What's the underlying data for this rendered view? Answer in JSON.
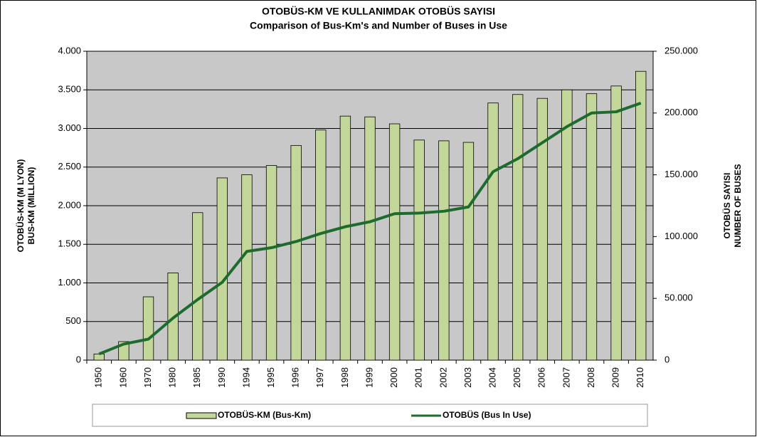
{
  "chart_data": {
    "type": "bar",
    "title": "OTOBÜS-KM VE KULLANIMDAK  OTOBÜS SAYISI",
    "subtitle": "Comparison of Bus-Km's and Number of Buses in Use",
    "ylabel": [
      "OTOBÜS-KM (M LYON)",
      "BUS-KM (MILLION)"
    ],
    "y2label": [
      "OTOBÜS SAYISI",
      "NUMBER OF BUSES"
    ],
    "categories": [
      "1950",
      "1960",
      "1970",
      "1980",
      "1985",
      "1990",
      "1994",
      "1995",
      "1996",
      "1997",
      "1998",
      "1999",
      "2000",
      "2001",
      "2002",
      "2003",
      "2004",
      "2005",
      "2006",
      "2007",
      "2008",
      "2009",
      "2010"
    ],
    "series": [
      {
        "name": "OTOBÜS-KM (Bus-Km)",
        "type": "bar",
        "color": "#c4d79b",
        "values": [
          80,
          240,
          820,
          1130,
          1910,
          2360,
          2400,
          2520,
          2780,
          2980,
          3160,
          3150,
          3060,
          2850,
          2840,
          2820,
          3330,
          3440,
          3390,
          3500,
          3450,
          3550,
          3740
        ]
      },
      {
        "name": "OTOBÜS (Bus In Use)",
        "type": "line",
        "axis": "y2",
        "color": "#1e6b2e",
        "values": [
          5000,
          13000,
          17000,
          34000,
          49000,
          63000,
          88000,
          91000,
          96000,
          102500,
          108000,
          112000,
          118500,
          119000,
          120500,
          124000,
          152500,
          163000,
          176000,
          189000,
          200000,
          201000,
          208000
        ]
      }
    ],
    "ylim": [
      0,
      4000
    ],
    "yticks": [
      0,
      500,
      {
        "value": 1000,
        "label": "1.000"
      },
      {
        "value": 1500,
        "label": "1.500"
      },
      {
        "value": 2000,
        "label": "2.000"
      },
      {
        "value": 2500,
        "label": "2.500"
      },
      {
        "value": 3000,
        "label": "3.000"
      },
      {
        "value": 3500,
        "label": "3.500"
      },
      {
        "value": 4000,
        "label": "4.000"
      }
    ],
    "y2lim": [
      0,
      250000
    ],
    "y2ticks": [
      0,
      {
        "value": 50000,
        "label": "50.000"
      },
      {
        "value": 100000,
        "label": "100.000"
      },
      {
        "value": 150000,
        "label": "150.000"
      },
      {
        "value": 200000,
        "label": "200.000"
      },
      {
        "value": 250000,
        "label": "250.000"
      }
    ],
    "grid": true,
    "legend": "bottom"
  }
}
